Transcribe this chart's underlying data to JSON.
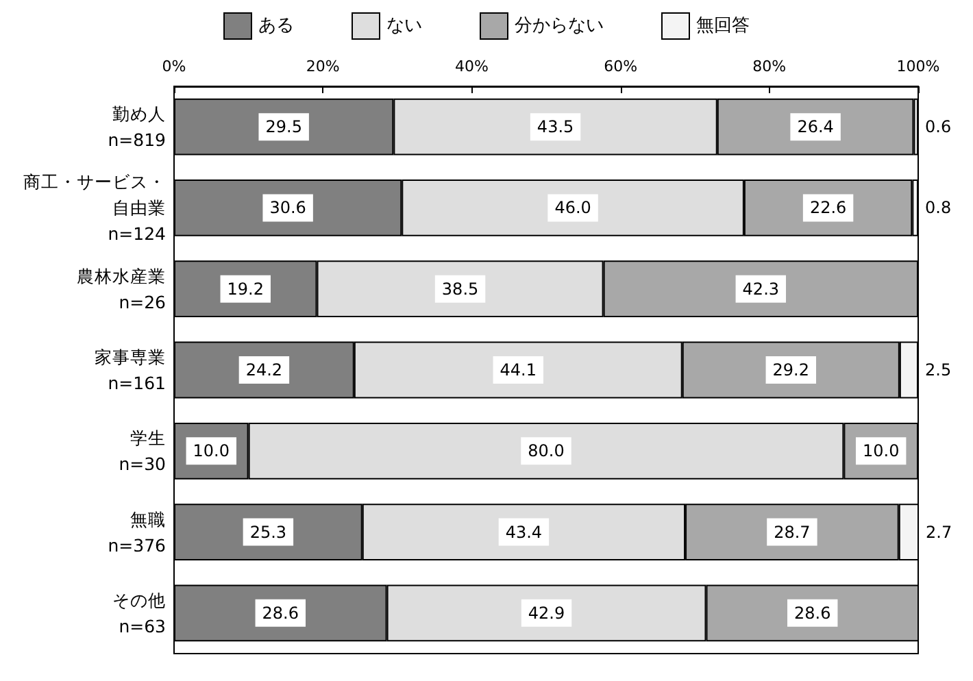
{
  "chart_data": {
    "type": "bar",
    "orientation": "horizontal",
    "stacked": true,
    "categories": [
      "勤め人\nn=819",
      "商工・サービス・自由業\nn=124",
      "農林水産業\nn=26",
      "家事専業\nn=161",
      "学生\nn=30",
      "無職\nn=376",
      "その他\nn=63"
    ],
    "series": [
      {
        "name": "ある",
        "color": "#808080",
        "values": [
          29.5,
          30.6,
          19.2,
          24.2,
          10.0,
          25.3,
          28.6
        ],
        "value_labels": [
          "29.5",
          "30.6",
          "19.2",
          "24.2",
          "10.0",
          "25.3",
          "28.6"
        ]
      },
      {
        "name": "ない",
        "color": "#dedede",
        "values": [
          43.5,
          46.0,
          38.5,
          44.1,
          80.0,
          43.4,
          42.9
        ],
        "value_labels": [
          "43.5",
          "46.0",
          "38.5",
          "44.1",
          "80.0",
          "43.4",
          "42.9"
        ]
      },
      {
        "name": "分からない",
        "color": "#a8a8a8",
        "values": [
          26.4,
          22.6,
          42.3,
          29.2,
          10.0,
          28.7,
          28.6
        ],
        "value_labels": [
          "26.4",
          "22.6",
          "42.3",
          "29.2",
          "10.0",
          "28.7",
          "28.6"
        ]
      },
      {
        "name": "無回答",
        "color": "#f4f4f4",
        "values": [
          0.6,
          0.8,
          null,
          2.5,
          null,
          2.7,
          null
        ],
        "value_labels": [
          "0.6",
          "0.8",
          null,
          "2.5",
          null,
          "2.7",
          null
        ]
      }
    ],
    "xlim": [
      0,
      100
    ],
    "xticks": [
      {
        "value": 0,
        "label": "0%"
      },
      {
        "value": 20,
        "label": "20%"
      },
      {
        "value": 40,
        "label": "40%"
      },
      {
        "value": 60,
        "label": "60%"
      },
      {
        "value": 80,
        "label": "80%"
      },
      {
        "value": 100,
        "label": "100%"
      }
    ],
    "legend": "top",
    "grid": false
  }
}
